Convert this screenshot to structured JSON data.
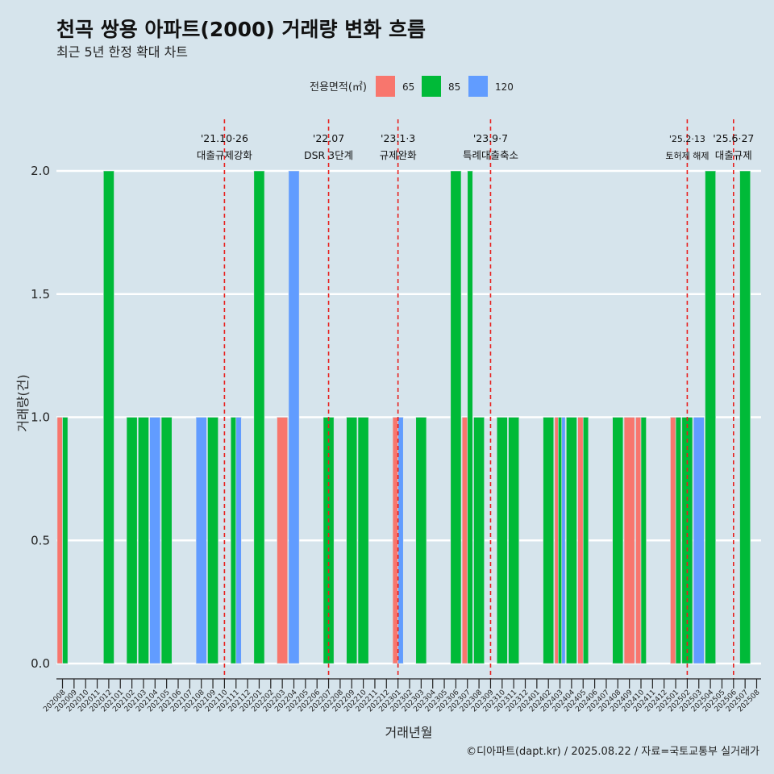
{
  "chart_data": {
    "type": "bar",
    "title": "천곡 쌍용 아파트(2000) 거래량 변화 흐름",
    "subtitle": "최근 5년 한정 확대 차트",
    "xlabel": "거래년월",
    "ylabel": "거래량(건)",
    "ylim": [
      0,
      2.0
    ],
    "yticks": [
      "0.0",
      "0.5",
      "1.0",
      "1.5",
      "2.0"
    ],
    "grid": true,
    "legend_position": "top",
    "legend_title": "전용면적(㎡)",
    "categories": [
      "202008",
      "202009",
      "202010",
      "202011",
      "202012",
      "202101",
      "202102",
      "202103",
      "202104",
      "202105",
      "202106",
      "202107",
      "202108",
      "202109",
      "202110",
      "202111",
      "202112",
      "202201",
      "202202",
      "202203",
      "202204",
      "202205",
      "202206",
      "202207",
      "202208",
      "202209",
      "202210",
      "202211",
      "202212",
      "202301",
      "202302",
      "202303",
      "202304",
      "202305",
      "202306",
      "202307",
      "202308",
      "202309",
      "202310",
      "202311",
      "202312",
      "202401",
      "202402",
      "202403",
      "202404",
      "202405",
      "202406",
      "202407",
      "202408",
      "202409",
      "202410",
      "202411",
      "202412",
      "202501",
      "202502",
      "202503",
      "202504",
      "202505",
      "202506",
      "202507",
      "202508"
    ],
    "series": [
      {
        "name": "65",
        "color": "#f8766d",
        "values": [
          1,
          0,
          0,
          0,
          0,
          0,
          0,
          0,
          0,
          0,
          0,
          0,
          0,
          0,
          0,
          0,
          0,
          0,
          0,
          1,
          0,
          0,
          0,
          0,
          0,
          0,
          0,
          0,
          0,
          1,
          0,
          0,
          0,
          0,
          0,
          1,
          0,
          0,
          0,
          0,
          0,
          0,
          0,
          1,
          0,
          1,
          0,
          0,
          0,
          1,
          1,
          0,
          0,
          1,
          0,
          0,
          0,
          0,
          0,
          0,
          0
        ]
      },
      {
        "name": "85",
        "color": "#00ba38",
        "values": [
          1,
          0,
          0,
          0,
          2,
          0,
          1,
          1,
          0,
          1,
          0,
          0,
          0,
          1,
          0,
          1,
          0,
          2,
          0,
          0,
          0,
          0,
          0,
          1,
          0,
          1,
          1,
          0,
          0,
          0,
          0,
          1,
          0,
          0,
          2,
          2,
          1,
          0,
          1,
          1,
          0,
          0,
          1,
          1,
          1,
          1,
          0,
          0,
          1,
          0,
          1,
          0,
          0,
          1,
          1,
          0,
          2,
          0,
          0,
          2,
          0
        ]
      },
      {
        "name": "120",
        "color": "#619cff",
        "values": [
          0,
          0,
          0,
          0,
          0,
          0,
          0,
          0,
          1,
          0,
          0,
          0,
          1,
          0,
          0,
          1,
          0,
          0,
          0,
          0,
          2,
          0,
          0,
          0,
          0,
          0,
          0,
          0,
          0,
          1,
          0,
          0,
          0,
          0,
          0,
          0,
          0,
          0,
          0,
          0,
          0,
          0,
          0,
          1,
          0,
          0,
          0,
          0,
          0,
          0,
          0,
          0,
          0,
          0,
          0,
          1,
          0,
          0,
          0,
          0,
          0
        ]
      }
    ],
    "events": [
      {
        "date": "'21.10·26",
        "label": "대출규제강화",
        "category": "202110"
      },
      {
        "date": "'22.07",
        "label": "DSR 3단계",
        "category": "202207"
      },
      {
        "date": "'23.1·3",
        "label": "규제완화",
        "category": "202301"
      },
      {
        "date": "'23.9·7",
        "label": "특례대출축소",
        "category": "202309"
      },
      {
        "date": "'25.2·13",
        "label": "토허제 해제",
        "category": "202502",
        "small": true
      },
      {
        "date": "'25.6·27",
        "label": "대출규제",
        "category": "202506"
      }
    ]
  },
  "caption": "©디아파트(dapt.kr) / 2025.08.22 / 자료=국토교통부 실거래가"
}
